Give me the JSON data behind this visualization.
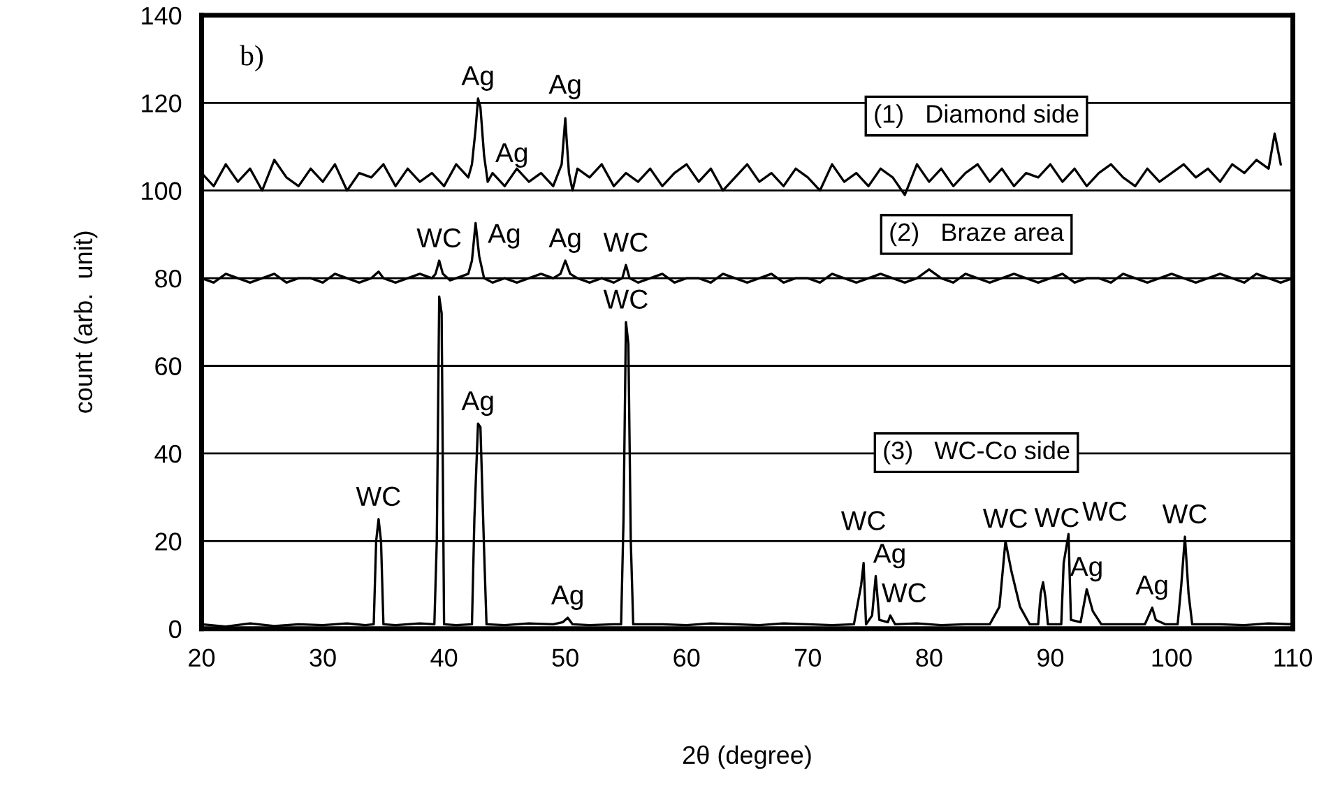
{
  "chart_data": {
    "type": "line",
    "xlabel": "2θ (degree)",
    "ylabel": "count (arb.  unit)",
    "xlim": [
      20,
      110
    ],
    "xticks": [
      20,
      30,
      40,
      50,
      60,
      70,
      80,
      90,
      100,
      110
    ],
    "ylim": [
      0,
      140
    ],
    "yticks": [
      0,
      20,
      40,
      60,
      80,
      100,
      120,
      140
    ],
    "grid": "y",
    "legend": false,
    "marker": "none",
    "line_style": "solid",
    "series": [
      {
        "name": "(1)   Diamond side",
        "color": "#000000",
        "x": [
          20,
          21,
          22,
          23,
          24,
          25,
          26,
          27,
          28,
          29,
          30,
          31,
          32,
          33,
          34,
          35,
          36,
          37,
          38,
          39,
          40,
          41,
          42,
          42.3,
          42.6,
          42.8,
          43.0,
          43.3,
          43.6,
          44,
          45,
          46,
          47,
          48,
          49,
          49.7,
          50.0,
          50.1,
          50.3,
          50.6,
          51,
          52,
          53,
          54,
          55,
          56,
          57,
          58,
          59,
          60,
          61,
          62,
          63,
          64,
          65,
          66,
          67,
          68,
          69,
          70,
          71,
          72,
          73,
          74,
          75,
          76,
          77,
          78,
          79,
          80,
          81,
          82,
          83,
          84,
          85,
          86,
          87,
          88,
          89,
          90,
          91,
          92,
          93,
          94,
          95,
          96,
          97,
          98,
          99,
          100,
          101,
          102,
          103,
          104,
          105,
          106,
          107,
          108,
          108.5,
          109
        ],
        "values": [
          104,
          101,
          106,
          102,
          105,
          100,
          107,
          103,
          101,
          105,
          102,
          106,
          100,
          104,
          103,
          106,
          101,
          105,
          102,
          104,
          101,
          106,
          103,
          106,
          114,
          121,
          119,
          108,
          102,
          104,
          101,
          105,
          102,
          104,
          101,
          106,
          116.5,
          112,
          104,
          100,
          105,
          103,
          106,
          101,
          104,
          102,
          105,
          101,
          104,
          106,
          102,
          105,
          100,
          103,
          106,
          102,
          104,
          101,
          105,
          103,
          100,
          106,
          102,
          104,
          101,
          105,
          103,
          99,
          106,
          102,
          105,
          101,
          104,
          106,
          102,
          105,
          101,
          104,
          103,
          106,
          102,
          105,
          101,
          104,
          106,
          103,
          101,
          105,
          102,
          104,
          106,
          103,
          105,
          102,
          106,
          104,
          107,
          105,
          113,
          106
        ]
      },
      {
        "name": "(2)   Braze area",
        "color": "#000000",
        "x": [
          20,
          21,
          22,
          23,
          24,
          25,
          26,
          27,
          28,
          29,
          30,
          31,
          32,
          33,
          34,
          34.6,
          35,
          36,
          37,
          38,
          39,
          39.3,
          39.6,
          39.9,
          40.5,
          41,
          42,
          42.3,
          42.6,
          42.9,
          43.3,
          44,
          45,
          46,
          47,
          48,
          49,
          49.6,
          50.0,
          50.4,
          51,
          52,
          53,
          54,
          54.7,
          55.0,
          55.3,
          56,
          57,
          58,
          59,
          60,
          61,
          62,
          63,
          64,
          65,
          66,
          67,
          68,
          69,
          70,
          71,
          72,
          73,
          74,
          75,
          76,
          77,
          78,
          79,
          80,
          81,
          82,
          83,
          84,
          85,
          86,
          87,
          88,
          89,
          90,
          91,
          92,
          93,
          94,
          95,
          96,
          97,
          98,
          99,
          100,
          101,
          102,
          103,
          104,
          105,
          106,
          107,
          108,
          109,
          110
        ],
        "values": [
          80,
          79,
          81,
          80,
          79,
          80,
          81,
          79,
          80,
          80,
          79,
          81,
          80,
          79,
          80,
          81.5,
          80,
          79,
          80,
          81,
          80,
          81,
          84,
          81,
          79.5,
          80,
          81,
          84,
          92.6,
          85,
          80,
          79,
          80,
          79,
          80,
          81,
          80,
          81,
          84,
          81,
          80,
          79,
          80,
          79,
          80,
          83,
          80,
          79,
          80,
          81,
          79,
          80,
          80,
          79,
          81,
          80,
          79,
          80,
          81,
          79,
          80,
          80,
          79,
          81,
          80,
          79,
          80,
          81,
          80,
          79,
          80,
          82,
          80,
          79,
          81,
          80,
          79,
          80,
          81,
          80,
          79,
          80,
          81,
          79,
          80,
          80,
          79,
          81,
          80,
          79,
          80,
          81,
          80,
          79,
          80,
          81,
          80,
          79,
          81,
          80,
          79,
          80
        ]
      },
      {
        "name": "(3)   WC-Co side",
        "color": "#000000",
        "x": [
          20,
          22,
          24,
          26,
          28,
          30,
          32,
          33.5,
          34.2,
          34.4,
          34.6,
          34.8,
          35.0,
          36,
          38,
          39.2,
          39.4,
          39.6,
          39.8,
          40.0,
          41,
          42.3,
          42.5,
          42.8,
          43.0,
          43.3,
          43.5,
          45,
          47,
          49,
          49.8,
          50.2,
          50.6,
          52,
          54,
          54.6,
          54.8,
          55.0,
          55.2,
          55.4,
          55.6,
          58,
          60,
          62,
          64,
          66,
          68,
          70,
          72,
          73.8,
          74.4,
          74.6,
          74.8,
          75.3,
          75.6,
          75.9,
          76.6,
          76.8,
          77.2,
          79,
          81,
          83,
          85,
          85.8,
          86.3,
          86.8,
          87.5,
          88.3,
          89.0,
          89.2,
          89.4,
          89.6,
          89.8,
          90.9,
          91.1,
          91.5,
          91.7,
          92.5,
          93.0,
          93.5,
          94.2,
          96,
          97.8,
          98.2,
          98.4,
          98.7,
          99.5,
          100.5,
          100.8,
          101.1,
          101.4,
          101.7,
          104,
          106,
          108,
          110
        ],
        "values": [
          1,
          0.5,
          1.2,
          0.6,
          1,
          0.8,
          1.2,
          0.8,
          1,
          20,
          25,
          20,
          1,
          0.8,
          1.2,
          1,
          20,
          75.8,
          72,
          1,
          0.8,
          1,
          25,
          46.8,
          46,
          18,
          1,
          0.8,
          1.2,
          1,
          1.5,
          2.5,
          1,
          0.8,
          1,
          1,
          25,
          70,
          65,
          20,
          1,
          1,
          0.8,
          1.2,
          1,
          0.8,
          1.2,
          1,
          0.8,
          1,
          10,
          15,
          1,
          3,
          12,
          2,
          1.5,
          3,
          1,
          1.2,
          0.8,
          1,
          1,
          5,
          20,
          13,
          5,
          1,
          1,
          8,
          10.6,
          7,
          1,
          1,
          15,
          21.6,
          2,
          1.5,
          9,
          4,
          1,
          1,
          1,
          3.5,
          4.8,
          2,
          1,
          1,
          10,
          21,
          8,
          1,
          1,
          0.8,
          1.2,
          1
        ]
      }
    ],
    "annotations": [
      "b)",
      {
        "text": "Ag",
        "x": 42.8,
        "y": 121
      },
      {
        "text": "Ag",
        "x": 50.0,
        "y": 116.5
      },
      {
        "text": "WC",
        "x": 39.6,
        "y": 84
      },
      {
        "text": "Ag",
        "x": 42.6,
        "y": 92.6
      },
      {
        "text": "Ag",
        "x": 42.9,
        "y": 85
      },
      {
        "text": "Ag",
        "x": 50.0,
        "y": 84
      },
      {
        "text": "WC",
        "x": 55.0,
        "y": 83
      },
      {
        "text": "WC",
        "x": 34.6,
        "y": 25
      },
      {
        "text": "Ag",
        "x": 42.8,
        "y": 46.8
      },
      {
        "text": "WC",
        "x": 55.0,
        "y": 70
      },
      {
        "text": "Ag",
        "x": 50.2,
        "y": 2.5
      },
      {
        "text": "WC",
        "x": 74.6,
        "y": 15
      },
      {
        "text": "Ag",
        "x": 75.6,
        "y": 12
      },
      {
        "text": "WC",
        "x": 76.8,
        "y": 3
      },
      {
        "text": "WC",
        "x": 86.3,
        "y": 20
      },
      {
        "text": "WC",
        "x": 89.4,
        "y": 10.6
      },
      {
        "text": "WC",
        "x": 91.5,
        "y": 21.6
      },
      {
        "text": "Ag",
        "x": 93.0,
        "y": 9
      },
      {
        "text": "Ag",
        "x": 98.4,
        "y": 4.8
      },
      {
        "text": "WC",
        "x": 101.1,
        "y": 21
      }
    ]
  }
}
